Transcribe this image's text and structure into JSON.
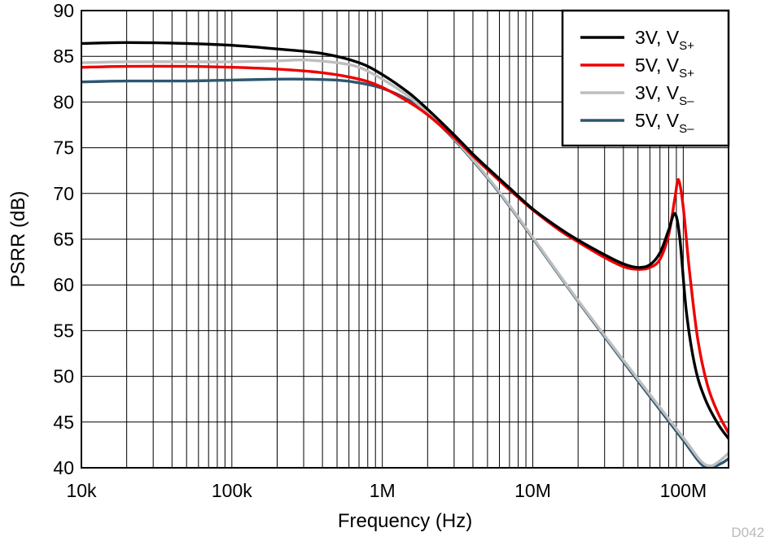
{
  "chart_data": {
    "type": "line",
    "title": "",
    "xlabel": "Frequency (Hz)",
    "ylabel": "PSRR (dB)",
    "x_scale": "log",
    "xlim": [
      10000,
      200000000
    ],
    "ylim": [
      40,
      90
    ],
    "grid": true,
    "legend_position": "top-right",
    "figure_code": "D042",
    "x_ticks": [
      {
        "value": 10000,
        "label": "10k"
      },
      {
        "value": 100000,
        "label": "100k"
      },
      {
        "value": 1000000,
        "label": "1M"
      },
      {
        "value": 10000000,
        "label": "10M"
      },
      {
        "value": 100000000,
        "label": "100M"
      }
    ],
    "y_ticks": [
      {
        "value": 40,
        "label": "40"
      },
      {
        "value": 45,
        "label": "45"
      },
      {
        "value": 50,
        "label": "50"
      },
      {
        "value": 55,
        "label": "55"
      },
      {
        "value": 60,
        "label": "60"
      },
      {
        "value": 65,
        "label": "65"
      },
      {
        "value": 70,
        "label": "70"
      },
      {
        "value": 75,
        "label": "75"
      },
      {
        "value": 80,
        "label": "80"
      },
      {
        "value": 85,
        "label": "85"
      },
      {
        "value": 90,
        "label": "90"
      }
    ],
    "series": [
      {
        "name": "3V, VS+",
        "name_main": "3V, V",
        "name_sub": "S+",
        "color": "#000000",
        "points": [
          [
            10000,
            86.4
          ],
          [
            20000,
            86.5
          ],
          [
            50000,
            86.4
          ],
          [
            100000,
            86.2
          ],
          [
            200000,
            85.8
          ],
          [
            400000,
            85.3
          ],
          [
            700000,
            84.3
          ],
          [
            1000000,
            83.0
          ],
          [
            1500000,
            81.0
          ],
          [
            2000000,
            79.2
          ],
          [
            3000000,
            76.4
          ],
          [
            4000000,
            74.3
          ],
          [
            5000000,
            72.8
          ],
          [
            7000000,
            70.6
          ],
          [
            10000000,
            68.3
          ],
          [
            15000000,
            66.2
          ],
          [
            20000000,
            64.9
          ],
          [
            30000000,
            63.3
          ],
          [
            40000000,
            62.3
          ],
          [
            50000000,
            61.9
          ],
          [
            60000000,
            62.2
          ],
          [
            70000000,
            63.5
          ],
          [
            80000000,
            66.0
          ],
          [
            88000000,
            67.8
          ],
          [
            95000000,
            65.0
          ],
          [
            105000000,
            57.0
          ],
          [
            120000000,
            51.0
          ],
          [
            140000000,
            47.5
          ],
          [
            170000000,
            44.8
          ],
          [
            200000000,
            43.2
          ]
        ]
      },
      {
        "name": "5V, VS+",
        "name_main": "5V, V",
        "name_sub": "S+",
        "color": "#ee0000",
        "points": [
          [
            10000,
            83.8
          ],
          [
            20000,
            83.9
          ],
          [
            50000,
            83.9
          ],
          [
            100000,
            83.8
          ],
          [
            200000,
            83.6
          ],
          [
            400000,
            83.2
          ],
          [
            700000,
            82.5
          ],
          [
            1000000,
            81.6
          ],
          [
            1500000,
            80.0
          ],
          [
            2000000,
            78.6
          ],
          [
            3000000,
            76.1
          ],
          [
            4000000,
            74.1
          ],
          [
            5000000,
            72.6
          ],
          [
            7000000,
            70.4
          ],
          [
            10000000,
            68.2
          ],
          [
            15000000,
            66.0
          ],
          [
            20000000,
            64.7
          ],
          [
            30000000,
            63.0
          ],
          [
            40000000,
            62.0
          ],
          [
            50000000,
            61.7
          ],
          [
            60000000,
            61.9
          ],
          [
            70000000,
            62.8
          ],
          [
            80000000,
            65.5
          ],
          [
            88000000,
            69.5
          ],
          [
            93000000,
            71.5
          ],
          [
            100000000,
            68.5
          ],
          [
            110000000,
            61.5
          ],
          [
            125000000,
            54.0
          ],
          [
            145000000,
            49.0
          ],
          [
            170000000,
            46.0
          ],
          [
            200000000,
            43.8
          ]
        ]
      },
      {
        "name": "3V, VS–",
        "name_main": "3V, V",
        "name_sub": "S–",
        "color": "#bebebe",
        "points": [
          [
            10000,
            84.3
          ],
          [
            20000,
            84.4
          ],
          [
            50000,
            84.4
          ],
          [
            100000,
            84.4
          ],
          [
            200000,
            84.5
          ],
          [
            300000,
            84.6
          ],
          [
            500000,
            84.3
          ],
          [
            700000,
            83.8
          ],
          [
            1000000,
            82.5
          ],
          [
            1500000,
            80.6
          ],
          [
            2000000,
            78.8
          ],
          [
            3000000,
            76.0
          ],
          [
            5000000,
            71.8
          ],
          [
            7000000,
            68.7
          ],
          [
            10000000,
            65.2
          ],
          [
            20000000,
            58.3
          ],
          [
            50000000,
            49.7
          ],
          [
            100000000,
            43.3
          ],
          [
            130000000,
            40.8
          ],
          [
            150000000,
            40.2
          ],
          [
            170000000,
            40.6
          ],
          [
            200000000,
            41.6
          ]
        ]
      },
      {
        "name": "5V, VS–",
        "name_main": "5V, V",
        "name_sub": "S–",
        "color": "#2d5670",
        "points": [
          [
            10000,
            82.2
          ],
          [
            20000,
            82.3
          ],
          [
            50000,
            82.3
          ],
          [
            100000,
            82.4
          ],
          [
            200000,
            82.5
          ],
          [
            300000,
            82.5
          ],
          [
            500000,
            82.4
          ],
          [
            700000,
            82.1
          ],
          [
            1000000,
            81.5
          ],
          [
            1500000,
            80.2
          ],
          [
            2000000,
            78.7
          ],
          [
            3000000,
            75.9
          ],
          [
            5000000,
            71.7
          ],
          [
            7000000,
            68.6
          ],
          [
            10000000,
            65.1
          ],
          [
            20000000,
            58.2
          ],
          [
            50000000,
            49.5
          ],
          [
            100000000,
            43.0
          ],
          [
            130000000,
            40.5
          ],
          [
            150000000,
            40.0
          ],
          [
            180000000,
            40.5
          ],
          [
            200000000,
            41.0
          ]
        ]
      }
    ]
  }
}
